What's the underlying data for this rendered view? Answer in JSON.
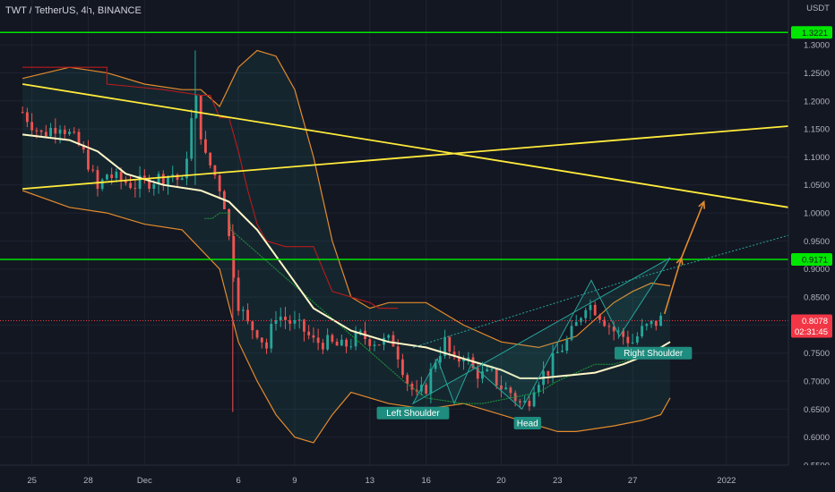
{
  "header": {
    "title": "TWT / TetherUS, 4h, BINANCE"
  },
  "chart_data": {
    "type": "candlestick",
    "currency_label": "USDT",
    "y_ticks": [
      "1.3000",
      "1.2500",
      "1.2000",
      "1.1500",
      "1.1000",
      "1.0500",
      "1.0000",
      "0.9500",
      "0.9000",
      "0.8500",
      "0.8000",
      "0.7500",
      "0.7000",
      "0.6500",
      "0.6000",
      "0.5500"
    ],
    "y_tick_values": [
      1.3,
      1.25,
      1.2,
      1.15,
      1.1,
      1.05,
      1.0,
      0.95,
      0.9,
      0.85,
      0.8,
      0.75,
      0.7,
      0.65,
      0.6,
      0.55
    ],
    "x_ticks": [
      {
        "label": "25",
        "day": 0
      },
      {
        "label": "28",
        "day": 3
      },
      {
        "label": "Dec",
        "day": 6
      },
      {
        "label": "6",
        "day": 11
      },
      {
        "label": "9",
        "day": 14
      },
      {
        "label": "13",
        "day": 18
      },
      {
        "label": "16",
        "day": 21
      },
      {
        "label": "20",
        "day": 25
      },
      {
        "label": "23",
        "day": 28
      },
      {
        "label": "27",
        "day": 32
      },
      {
        "label": "2022",
        "day": 37
      }
    ],
    "ylim": [
      0.55,
      1.38
    ],
    "resistance_levels": [
      {
        "value": 1.3221,
        "label": "1.3221",
        "color": "#00e600"
      },
      {
        "value": 0.9171,
        "label": "0.9171",
        "color": "#00e600"
      }
    ],
    "current_price": {
      "value": 0.8078,
      "label": "0.8078",
      "countdown": "02:31:45",
      "color": "#f23645"
    },
    "trendlines": [
      {
        "name": "descending",
        "x1": -0.5,
        "y1": 1.23,
        "x2": 40.3,
        "y2": 1.01,
        "color": "#ffeb3b"
      },
      {
        "name": "ascending",
        "x1": -0.5,
        "y1": 1.043,
        "x2": 40.3,
        "y2": 1.155,
        "color": "#ffeb3b"
      }
    ],
    "pattern_labels": [
      {
        "text": "Left Shoulder",
        "day": 20.3,
        "price": 0.643
      },
      {
        "text": "Head",
        "day": 26.4,
        "price": 0.625
      },
      {
        "text": "Right Shoulder",
        "day": 33.1,
        "price": 0.75
      }
    ],
    "closes": [
      [
        -0.5,
        1.18
      ],
      [
        0.5,
        1.14
      ],
      [
        1.5,
        1.16
      ],
      [
        2.5,
        1.12
      ],
      [
        3.0,
        1.09
      ],
      [
        3.5,
        1.04
      ],
      [
        4.0,
        1.07
      ],
      [
        4.5,
        1.06
      ],
      [
        5.5,
        1.05
      ],
      [
        6.5,
        1.06
      ],
      [
        7.5,
        1.07
      ],
      [
        8.0,
        1.05
      ],
      [
        8.7,
        1.21
      ],
      [
        9.2,
        1.1
      ],
      [
        9.6,
        1.08
      ],
      [
        10.2,
        1.03
      ],
      [
        10.6,
        0.93
      ],
      [
        11.0,
        0.84
      ],
      [
        11.5,
        0.8
      ],
      [
        12.0,
        0.79
      ],
      [
        12.5,
        0.76
      ],
      [
        13.0,
        0.82
      ],
      [
        13.5,
        0.81
      ],
      [
        14.0,
        0.8
      ],
      [
        14.5,
        0.79
      ],
      [
        15.0,
        0.77
      ],
      [
        15.5,
        0.77
      ],
      [
        16.5,
        0.76
      ],
      [
        17.5,
        0.78
      ],
      [
        18.5,
        0.77
      ],
      [
        19.3,
        0.77
      ],
      [
        20.0,
        0.7
      ],
      [
        20.5,
        0.67
      ],
      [
        21.0,
        0.69
      ],
      [
        21.5,
        0.74
      ],
      [
        22.0,
        0.77
      ],
      [
        22.5,
        0.73
      ],
      [
        23.0,
        0.75
      ],
      [
        23.5,
        0.72
      ],
      [
        24.0,
        0.71
      ],
      [
        24.5,
        0.71
      ],
      [
        25.0,
        0.69
      ],
      [
        25.5,
        0.68
      ],
      [
        26.0,
        0.66
      ],
      [
        26.4,
        0.66
      ],
      [
        26.8,
        0.7
      ],
      [
        27.5,
        0.72
      ],
      [
        28.0,
        0.75
      ],
      [
        28.5,
        0.77
      ],
      [
        29.0,
        0.8
      ],
      [
        29.5,
        0.84
      ],
      [
        30.0,
        0.83
      ],
      [
        30.5,
        0.81
      ],
      [
        31.0,
        0.79
      ],
      [
        31.5,
        0.78
      ],
      [
        32.0,
        0.77
      ],
      [
        32.5,
        0.79
      ],
      [
        33.0,
        0.8
      ],
      [
        33.5,
        0.81
      ]
    ],
    "basis_line": [
      [
        -0.5,
        1.14
      ],
      [
        2,
        1.13
      ],
      [
        3.5,
        1.11
      ],
      [
        5,
        1.07
      ],
      [
        7,
        1.05
      ],
      [
        9,
        1.04
      ],
      [
        10.5,
        1.02
      ],
      [
        12,
        0.97
      ],
      [
        13.5,
        0.9
      ],
      [
        15,
        0.83
      ],
      [
        17,
        0.79
      ],
      [
        19,
        0.77
      ],
      [
        21,
        0.76
      ],
      [
        23,
        0.74
      ],
      [
        25,
        0.72
      ],
      [
        26,
        0.705
      ],
      [
        27,
        0.705
      ],
      [
        28.5,
        0.71
      ],
      [
        30,
        0.715
      ],
      [
        31.5,
        0.73
      ],
      [
        33,
        0.75
      ],
      [
        34,
        0.77
      ]
    ],
    "upper_band": [
      [
        -0.5,
        1.24
      ],
      [
        2,
        1.26
      ],
      [
        4,
        1.25
      ],
      [
        6,
        1.23
      ],
      [
        8,
        1.22
      ],
      [
        9,
        1.22
      ],
      [
        10,
        1.19
      ],
      [
        11,
        1.26
      ],
      [
        12,
        1.29
      ],
      [
        13,
        1.28
      ],
      [
        14,
        1.22
      ],
      [
        15,
        1.1
      ],
      [
        16,
        0.95
      ],
      [
        17,
        0.85
      ],
      [
        18,
        0.83
      ],
      [
        19,
        0.84
      ],
      [
        21,
        0.84
      ],
      [
        23,
        0.8
      ],
      [
        25,
        0.77
      ],
      [
        27,
        0.76
      ],
      [
        29,
        0.78
      ],
      [
        31,
        0.84
      ],
      [
        32,
        0.86
      ],
      [
        33,
        0.875
      ],
      [
        34,
        0.87
      ]
    ],
    "lower_band": [
      [
        -0.5,
        1.04
      ],
      [
        2,
        1.01
      ],
      [
        4,
        1.0
      ],
      [
        6,
        0.98
      ],
      [
        8,
        0.97
      ],
      [
        10,
        0.9
      ],
      [
        11,
        0.77
      ],
      [
        12,
        0.7
      ],
      [
        13,
        0.64
      ],
      [
        14,
        0.6
      ],
      [
        15,
        0.59
      ],
      [
        16,
        0.64
      ],
      [
        17,
        0.68
      ],
      [
        19,
        0.66
      ],
      [
        21,
        0.65
      ],
      [
        23,
        0.66
      ],
      [
        25,
        0.64
      ],
      [
        26,
        0.63
      ],
      [
        27,
        0.62
      ],
      [
        28,
        0.61
      ],
      [
        29,
        0.61
      ],
      [
        31,
        0.62
      ],
      [
        32.5,
        0.63
      ],
      [
        33.5,
        0.64
      ],
      [
        34,
        0.67
      ]
    ],
    "red_stop_line": [
      [
        -0.5,
        1.26
      ],
      [
        4,
        1.26
      ],
      [
        4,
        1.23
      ],
      [
        7,
        1.22
      ],
      [
        9,
        1.21
      ],
      [
        9.5,
        1.21
      ],
      [
        10,
        1.17
      ],
      [
        10.5,
        1.17
      ],
      [
        11,
        1.11
      ],
      [
        11.5,
        1.04
      ],
      [
        12,
        0.98
      ],
      [
        12.5,
        0.95
      ],
      [
        13.5,
        0.94
      ],
      [
        15,
        0.94
      ],
      [
        15.5,
        0.9
      ],
      [
        16,
        0.86
      ],
      [
        17,
        0.85
      ],
      [
        18,
        0.84
      ],
      [
        18.5,
        0.83
      ],
      [
        19.5,
        0.83
      ]
    ],
    "green_stop_line": [
      [
        9.2,
        0.99
      ],
      [
        9.6,
        0.99
      ],
      [
        10,
        1.0
      ],
      [
        10.5,
        1.0
      ],
      [
        10.6,
        0.97
      ],
      [
        19.8,
        0.7
      ],
      [
        21,
        0.67
      ],
      [
        23,
        0.66
      ],
      [
        24,
        0.66
      ],
      [
        27,
        0.68
      ],
      [
        28,
        0.7
      ],
      [
        30,
        0.73
      ],
      [
        31,
        0.73
      ],
      [
        32,
        0.74
      ],
      [
        33,
        0.745
      ],
      [
        34,
        0.75
      ]
    ],
    "projection": [
      [
        33.7,
        0.82
      ],
      [
        34.6,
        0.92
      ],
      [
        35.8,
        1.02
      ]
    ],
    "channel_upper": [
      [
        20.3,
        0.76
      ],
      [
        31.3,
        0.875
      ],
      [
        40.3,
        0.96
      ]
    ],
    "hs_pattern": [
      [
        20.3,
        0.66
      ],
      [
        21.6,
        0.74
      ],
      [
        22.5,
        0.66
      ],
      [
        23.4,
        0.73
      ],
      [
        26.1,
        0.65
      ],
      [
        29.8,
        0.88
      ],
      [
        31.3,
        0.78
      ],
      [
        34.0,
        0.92
      ]
    ]
  }
}
